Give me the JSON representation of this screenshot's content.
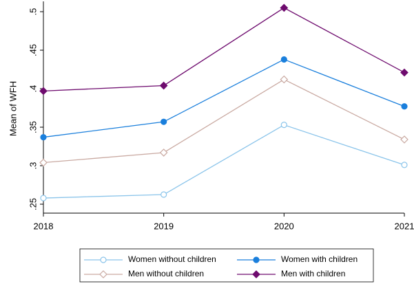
{
  "chart_data": {
    "type": "line",
    "y_label": "Mean of WFH",
    "x": [
      2018,
      2019,
      2020,
      2021
    ],
    "xlim": [
      2018,
      2021
    ],
    "xticks": [
      2018,
      2019,
      2020,
      2021
    ],
    "ylim": [
      0.2384,
      0.5134
    ],
    "yticks": [
      {
        "value": 0.25,
        "label": ".25"
      },
      {
        "value": 0.3,
        "label": ".3"
      },
      {
        "value": 0.35,
        "label": ".35"
      },
      {
        "value": 0.4,
        "label": ".4"
      },
      {
        "value": 0.45,
        "label": ".45"
      },
      {
        "value": 0.5,
        "label": ".5"
      }
    ],
    "series": [
      {
        "name": "Women without children",
        "color": "#8ac4ea",
        "marker": "circle",
        "filled": false,
        "values": [
          0.258,
          0.2625,
          0.353,
          0.301
        ]
      },
      {
        "name": "Women with children",
        "color": "#1a7fdc",
        "marker": "circle",
        "filled": true,
        "values": [
          0.337,
          0.357,
          0.438,
          0.377
        ]
      },
      {
        "name": "Men without children",
        "color": "#c9a9a1",
        "marker": "diamond",
        "filled": false,
        "values": [
          0.304,
          0.317,
          0.412,
          0.334
        ]
      },
      {
        "name": "Men with children",
        "color": "#6e0b6e",
        "marker": "diamond",
        "filled": true,
        "values": [
          0.397,
          0.404,
          0.505,
          0.421
        ]
      }
    ]
  }
}
